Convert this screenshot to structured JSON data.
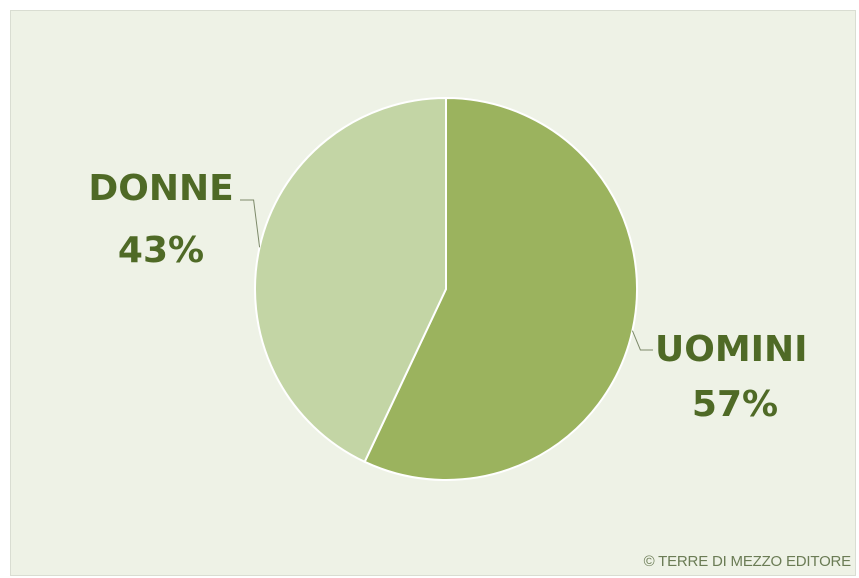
{
  "chart_data": {
    "type": "pie",
    "title": "",
    "slices": [
      {
        "label": "UOMINI",
        "percent_label": "57%",
        "value": 57,
        "color": "#9bb35e"
      },
      {
        "label": "DONNE",
        "percent_label": "43%",
        "value": 43,
        "color": "#c3d5a5"
      }
    ],
    "label_color": "#4f6a26",
    "background_color": "#eef2e6",
    "slice_border_color": "#ffffff"
  },
  "credit": "© TERRE DI MEZZO EDITORE"
}
